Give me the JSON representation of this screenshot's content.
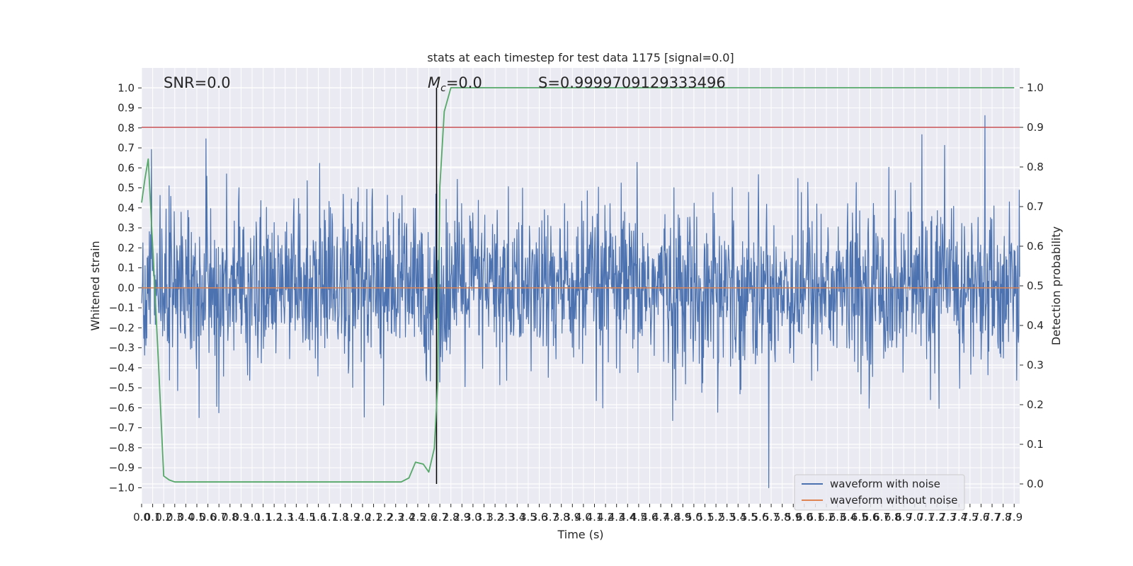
{
  "chart_data": {
    "type": "line",
    "title": "stats at each timestep for test data 1175 [signal=0.0]",
    "xlabel": "Time (s)",
    "ylabel": "Whitened strain",
    "y2label": "Detection probability",
    "xlim": [
      0.0,
      7.95
    ],
    "ylim": [
      -1.08,
      1.1
    ],
    "y2lim": [
      -0.05,
      1.05
    ],
    "x_ticks": [
      0.0,
      0.1,
      0.2,
      0.3,
      0.4,
      0.5,
      0.6,
      0.7,
      0.8,
      0.9,
      1.0,
      1.1,
      1.2,
      1.3,
      1.4,
      1.5,
      1.6,
      1.7,
      1.8,
      1.9,
      2.0,
      2.1,
      2.2,
      2.3,
      2.4,
      2.5,
      2.6,
      2.7,
      2.8,
      2.9,
      3.0,
      3.1,
      3.2,
      3.3,
      3.4,
      3.5,
      3.6,
      3.7,
      3.8,
      3.9,
      4.0,
      4.1,
      4.2,
      4.3,
      4.4,
      4.5,
      4.6,
      4.7,
      4.8,
      4.9,
      5.0,
      5.1,
      5.2,
      5.3,
      5.4,
      5.5,
      5.6,
      5.7,
      5.8,
      5.9,
      6.0,
      6.1,
      6.2,
      6.3,
      6.4,
      6.5,
      6.6,
      6.7,
      6.8,
      6.9,
      7.0,
      7.1,
      7.2,
      7.3,
      7.4,
      7.5,
      7.6,
      7.7,
      7.8,
      7.9
    ],
    "y_ticks": [
      -1.0,
      -0.9,
      -0.8,
      -0.7,
      -0.6,
      -0.5,
      -0.4,
      -0.3,
      -0.2,
      -0.1,
      0.0,
      0.1,
      0.2,
      0.3,
      0.4,
      0.5,
      0.6,
      0.7,
      0.8,
      0.9,
      1.0
    ],
    "y2_ticks": [
      0.0,
      0.1,
      0.2,
      0.3,
      0.4,
      0.5,
      0.6,
      0.7,
      0.8,
      0.9,
      1.0
    ],
    "annotations": {
      "snr": "SNR=0.0",
      "mc": "=0.0",
      "s": "S=0.9999709129333496"
    },
    "threshold": {
      "value": 0.9,
      "axis": "y2",
      "color": "#c44e52"
    },
    "marker_line": {
      "x": 2.67,
      "color": "#000000"
    },
    "series": [
      {
        "name": "waveform with noise",
        "color": "#4c72b0",
        "axis": "y",
        "kind": "noise",
        "noise_std": 0.2,
        "noise_envelope": [
          -1.0,
          1.0
        ],
        "samples": 2048
      },
      {
        "name": "waveform without noise",
        "color": "#dd8452",
        "axis": "y",
        "x": [
          0.0,
          7.95
        ],
        "values": [
          0.0,
          0.0
        ]
      },
      {
        "name": "detection probability",
        "color": "#55a868",
        "axis": "y2",
        "x": [
          0.0,
          0.03,
          0.06,
          0.1,
          0.15,
          0.2,
          0.25,
          0.3,
          0.4,
          0.6,
          1.0,
          1.5,
          2.0,
          2.35,
          2.42,
          2.48,
          2.55,
          2.6,
          2.65,
          2.68,
          2.7,
          2.74,
          2.8,
          4.0,
          6.0,
          7.9
        ],
        "values": [
          0.71,
          0.77,
          0.82,
          0.6,
          0.32,
          0.02,
          0.01,
          0.005,
          0.005,
          0.005,
          0.005,
          0.005,
          0.005,
          0.005,
          0.015,
          0.055,
          0.05,
          0.03,
          0.09,
          0.25,
          0.75,
          0.94,
          1.0,
          1.0,
          1.0,
          1.0
        ]
      }
    ],
    "legend": {
      "placement": "lower-right",
      "entries": [
        "waveform with noise",
        "waveform without noise"
      ]
    },
    "grid": true
  }
}
